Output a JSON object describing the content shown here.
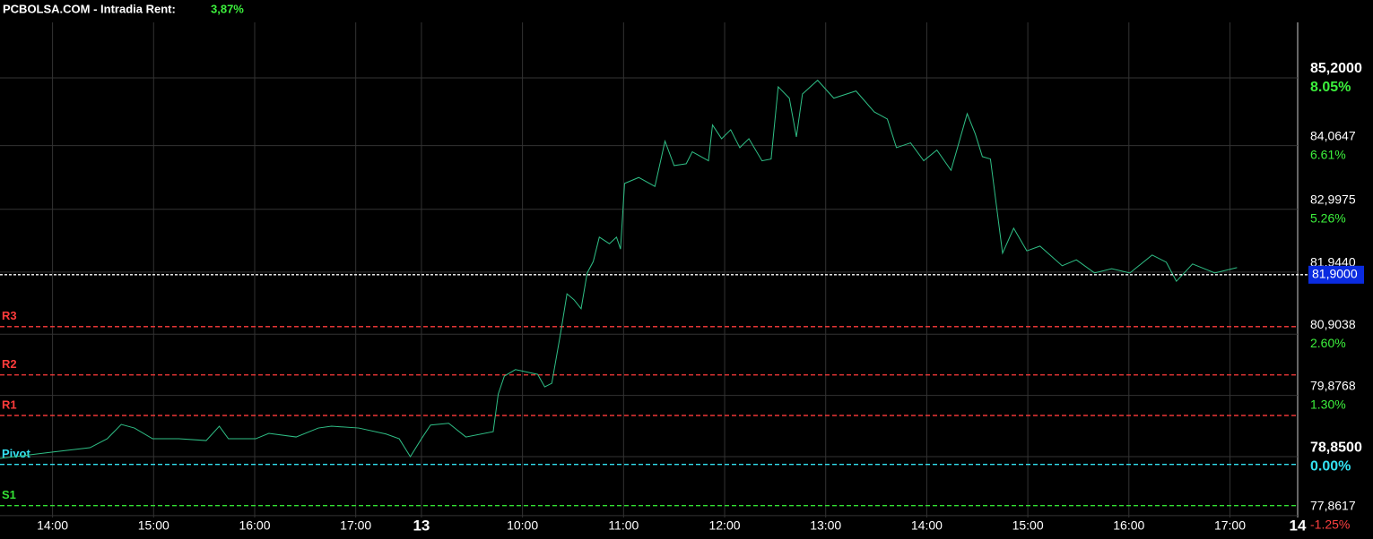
{
  "chart_data": {
    "type": "line",
    "title": "PCBOLSA.COM - Intradia  Rent:",
    "return_label": "3,87%",
    "color": "#2fbf86",
    "grid": true,
    "xlim": [
      0,
      12.84
    ],
    "xticks": [
      {
        "value": 0.52,
        "label": "14:00"
      },
      {
        "value": 1.52,
        "label": "15:00"
      },
      {
        "value": 2.52,
        "label": "16:00"
      },
      {
        "value": 3.52,
        "label": "17:00"
      },
      {
        "value": 4.17,
        "label": "13"
      },
      {
        "value": 5.17,
        "label": "10:00"
      },
      {
        "value": 6.17,
        "label": "11:00"
      },
      {
        "value": 7.17,
        "label": "12:00"
      },
      {
        "value": 8.17,
        "label": "13:00"
      },
      {
        "value": 9.17,
        "label": "14:00"
      },
      {
        "value": 10.17,
        "label": "15:00"
      },
      {
        "value": 11.17,
        "label": "16:00"
      },
      {
        "value": 12.17,
        "label": "17:00"
      },
      {
        "value": 12.84,
        "label": "14"
      }
    ],
    "ylim": [
      77.83,
      86.13
    ],
    "yticks": [
      {
        "value": 85.2,
        "label": "85,2000"
      },
      {
        "value": 84.0647,
        "label": "84,0647"
      },
      {
        "value": 82.9975,
        "label": "82,9975"
      },
      {
        "value": 81.944,
        "label": "81,9440"
      },
      {
        "value": 80.9038,
        "label": "80,9038"
      },
      {
        "value": 79.8768,
        "label": "79,8768"
      },
      {
        "value": 78.85,
        "label": "78,8500"
      },
      {
        "value": 77.8617,
        "label": "77,8617"
      }
    ],
    "y2lim": [
      -1.29,
      9.23
    ],
    "y2ticks": [
      {
        "value": 8.05,
        "label": "8.05%"
      },
      {
        "value": 6.61,
        "label": "6.61%"
      },
      {
        "value": 5.26,
        "label": "5.26%"
      },
      {
        "value": 2.6,
        "label": "2.60%"
      },
      {
        "value": 1.3,
        "label": "1.30%"
      },
      {
        "value": 0,
        "label": "0.00%"
      },
      {
        "value": -1.25,
        "label": "-1.25%"
      }
    ],
    "levels": [
      {
        "name": "R3",
        "value": 81.03,
        "color": "#ff3b3b"
      },
      {
        "name": "R2",
        "value": 80.22,
        "color": "#ff3b3b"
      },
      {
        "name": "R1",
        "value": 79.54,
        "color": "#ff3b3b"
      },
      {
        "name": "Pivot",
        "value": 78.72,
        "color": "#33e0f0"
      },
      {
        "name": "S1",
        "value": 78.03,
        "color": "#33e033"
      }
    ],
    "last_price": {
      "value": 81.9,
      "label": "81,9000"
    },
    "x": [
      0,
      0.53,
      0.89,
      1.06,
      1.2,
      1.33,
      1.51,
      1.77,
      2.04,
      2.17,
      2.26,
      2.53,
      2.66,
      2.93,
      3.15,
      3.28,
      3.55,
      3.82,
      3.95,
      4.06,
      4.17,
      4.26,
      4.44,
      4.61,
      4.88,
      4.93,
      4.99,
      5.1,
      5.32,
      5.39,
      5.46,
      5.55,
      5.61,
      5.68,
      5.75,
      5.81,
      5.87,
      5.93,
      6.03,
      6.1,
      6.14,
      6.18,
      6.32,
      6.48,
      6.58,
      6.67,
      6.79,
      6.85,
      7.01,
      7.05,
      7.14,
      7.23,
      7.32,
      7.41,
      7.54,
      7.63,
      7.7,
      7.81,
      7.88,
      7.94,
      8.09,
      8.25,
      8.47,
      8.65,
      8.78,
      8.87,
      9.01,
      9.14,
      9.27,
      9.41,
      9.57,
      9.65,
      9.72,
      9.8,
      9.92,
      10.03,
      10.16,
      10.29,
      10.51,
      10.65,
      10.83,
      11,
      11.18,
      11.4,
      11.54,
      11.64,
      11.8,
      12.02,
      12.24
    ],
    "values": [
      78.82,
      78.93,
      79,
      79.15,
      79.39,
      79.33,
      79.15,
      79.15,
      79.12,
      79.36,
      79.15,
      79.15,
      79.24,
      79.18,
      79.33,
      79.36,
      79.33,
      79.23,
      79.15,
      78.85,
      79.15,
      79.38,
      79.41,
      79.18,
      79.27,
      79.9,
      80.2,
      80.31,
      80.23,
      80.02,
      80.08,
      80.95,
      81.58,
      81.48,
      81.33,
      81.93,
      82.12,
      82.53,
      82.42,
      82.53,
      82.33,
      83.43,
      83.53,
      83.38,
      84.14,
      83.73,
      83.76,
      83.96,
      83.81,
      84.41,
      84.18,
      84.33,
      84.03,
      84.18,
      83.81,
      83.84,
      85.05,
      84.86,
      84.21,
      84.93,
      85.16,
      84.86,
      84.98,
      84.63,
      84.51,
      84.03,
      84.11,
      83.81,
      83.99,
      83.65,
      84.6,
      84.26,
      83.88,
      83.84,
      82.26,
      82.68,
      82.3,
      82.38,
      82.05,
      82.15,
      81.93,
      82,
      81.93,
      82.23,
      82.11,
      81.79,
      82.08,
      81.93,
      82.02
    ]
  }
}
